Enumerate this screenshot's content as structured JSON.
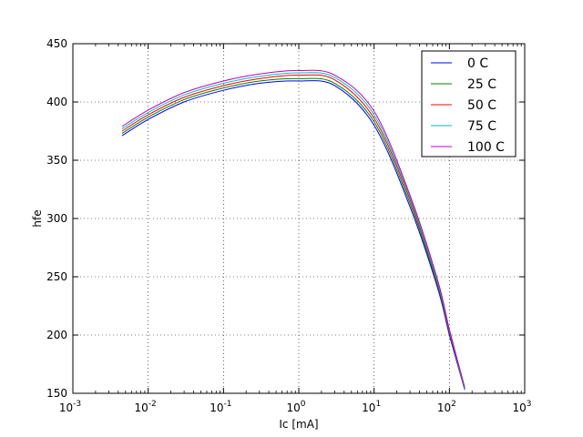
{
  "chart_data": {
    "type": "line",
    "xlabel": "Ic [mA]",
    "ylabel": "hfe",
    "xscale": "log",
    "xlim": [
      0.001,
      1000
    ],
    "ylim": [
      150,
      450
    ],
    "x_ticks": [
      0.001,
      0.01,
      0.1,
      1,
      10,
      100,
      1000
    ],
    "x_tick_labels": [
      {
        "base": "10",
        "exp": "-3"
      },
      {
        "base": "10",
        "exp": "-2"
      },
      {
        "base": "10",
        "exp": "-1"
      },
      {
        "base": "10",
        "exp": "0"
      },
      {
        "base": "10",
        "exp": "1"
      },
      {
        "base": "10",
        "exp": "2"
      },
      {
        "base": "10",
        "exp": "3"
      }
    ],
    "y_ticks": [
      150,
      200,
      250,
      300,
      350,
      400,
      450
    ],
    "y_tick_labels": [
      "150",
      "200",
      "250",
      "300",
      "350",
      "400",
      "450"
    ],
    "grid": true,
    "legend_position": "top-right",
    "x": [
      0.0045,
      0.01,
      0.03,
      0.1,
      0.3,
      1,
      3,
      10,
      30,
      70,
      100,
      160
    ],
    "series": [
      {
        "name": "0 C",
        "color": "#0000ff",
        "values": [
          371,
          385,
          400,
          410,
          416,
          418,
          414,
          380,
          310,
          240,
          200,
          153
        ]
      },
      {
        "name": "25 C",
        "color": "#008000",
        "values": [
          373,
          387,
          402,
          412,
          418,
          420,
          416,
          383,
          313,
          242,
          202,
          153
        ]
      },
      {
        "name": "50 C",
        "color": "#ff0000",
        "values": [
          375,
          389,
          404,
          414,
          420,
          423,
          419,
          386,
          316,
          244,
          203,
          154
        ]
      },
      {
        "name": "75 C",
        "color": "#00bfbf",
        "values": [
          377,
          391,
          406,
          416,
          422,
          425,
          421,
          389,
          318,
          245,
          204,
          154
        ]
      },
      {
        "name": "100 C",
        "color": "#bf00bf",
        "values": [
          379,
          393,
          408,
          418,
          424,
          427,
          423,
          392,
          320,
          247,
          205,
          155
        ]
      }
    ]
  }
}
